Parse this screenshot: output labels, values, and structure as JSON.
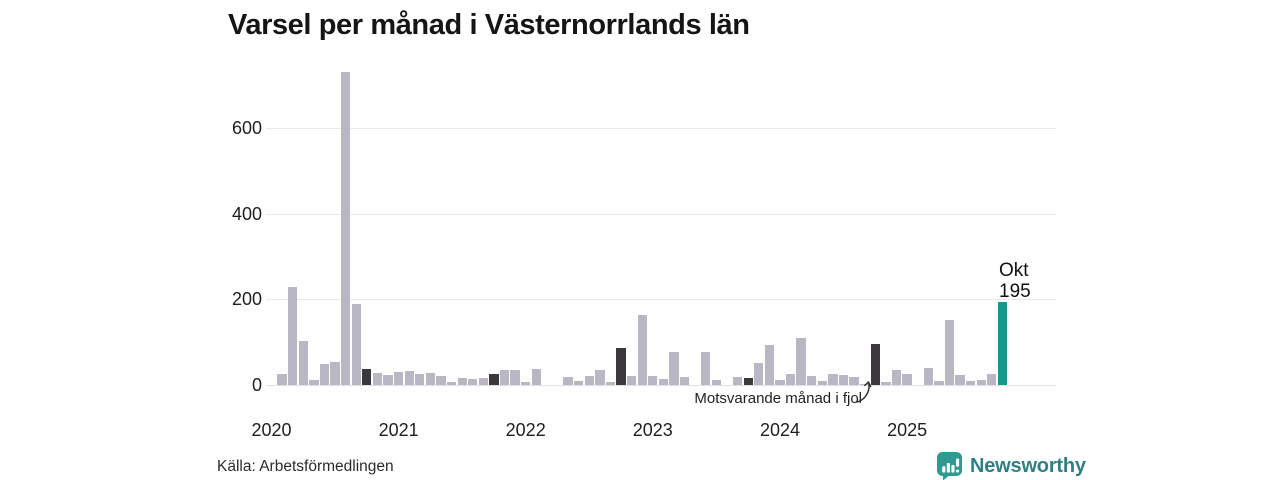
{
  "title": "Varsel per månad i Västernorrlands län",
  "source": "Källa: Arbetsförmedlingen",
  "branding": {
    "name": "Newsworthy",
    "icon": "newsworthy-speech-bubble-chart-icon",
    "icon_color": "#2f9a8f",
    "text_color": "#2f7f84"
  },
  "chart_data": {
    "type": "bar",
    "title": "Varsel per månad i Västernorrlands län",
    "xlabel": "",
    "ylabel": "",
    "grid": true,
    "ylim": [
      0,
      750
    ],
    "yticks": [
      0,
      200,
      400,
      600
    ],
    "year_ticks": [
      "2020",
      "2021",
      "2022",
      "2023",
      "2024",
      "2025"
    ],
    "months": [
      "2020-01",
      "2020-02",
      "2020-03",
      "2020-04",
      "2020-05",
      "2020-06",
      "2020-07",
      "2020-08",
      "2020-09",
      "2020-10",
      "2020-11",
      "2020-12",
      "2021-01",
      "2021-02",
      "2021-03",
      "2021-04",
      "2021-05",
      "2021-06",
      "2021-07",
      "2021-08",
      "2021-09",
      "2021-10",
      "2021-11",
      "2021-12",
      "2022-01",
      "2022-02",
      "2022-03",
      "2022-04",
      "2022-05",
      "2022-06",
      "2022-07",
      "2022-08",
      "2022-09",
      "2022-10",
      "2022-11",
      "2022-12",
      "2023-01",
      "2023-02",
      "2023-03",
      "2023-04",
      "2023-05",
      "2023-06",
      "2023-07",
      "2023-08",
      "2023-09",
      "2023-10",
      "2023-11",
      "2023-12",
      "2024-01",
      "2024-02",
      "2024-03",
      "2024-04",
      "2024-05",
      "2024-06",
      "2024-07",
      "2024-08",
      "2024-09",
      "2024-10",
      "2024-11",
      "2024-12",
      "2025-01",
      "2025-02",
      "2025-03",
      "2025-04",
      "2025-05",
      "2025-06",
      "2025-07",
      "2025-08",
      "2025-09",
      "2025-10"
    ],
    "values": [
      0,
      25,
      229,
      103,
      11,
      50,
      55,
      732,
      189,
      38,
      28,
      24,
      30,
      33,
      26,
      27,
      21,
      8,
      16,
      14,
      16,
      25,
      36,
      35,
      8,
      38,
      0,
      0,
      18,
      10,
      20,
      36,
      7,
      87,
      21,
      163,
      21,
      14,
      77,
      18,
      0,
      77,
      11,
      0,
      18,
      16,
      51,
      93,
      11,
      25,
      111,
      21,
      9,
      25,
      23,
      18,
      3,
      95,
      8,
      35,
      25,
      0,
      40,
      10,
      153,
      24,
      10,
      12,
      25,
      195
    ],
    "bar_color": "#b9b7c4",
    "compare_color": "#3a383c",
    "highlight_color": "#18988a",
    "compare_indices": [
      9,
      21,
      33,
      45,
      57
    ],
    "highlight_index": 69,
    "highlight_label": {
      "line1": "Okt",
      "line2": "195"
    },
    "annotation": "Motsvarande månad i fjol",
    "legend": "none"
  }
}
